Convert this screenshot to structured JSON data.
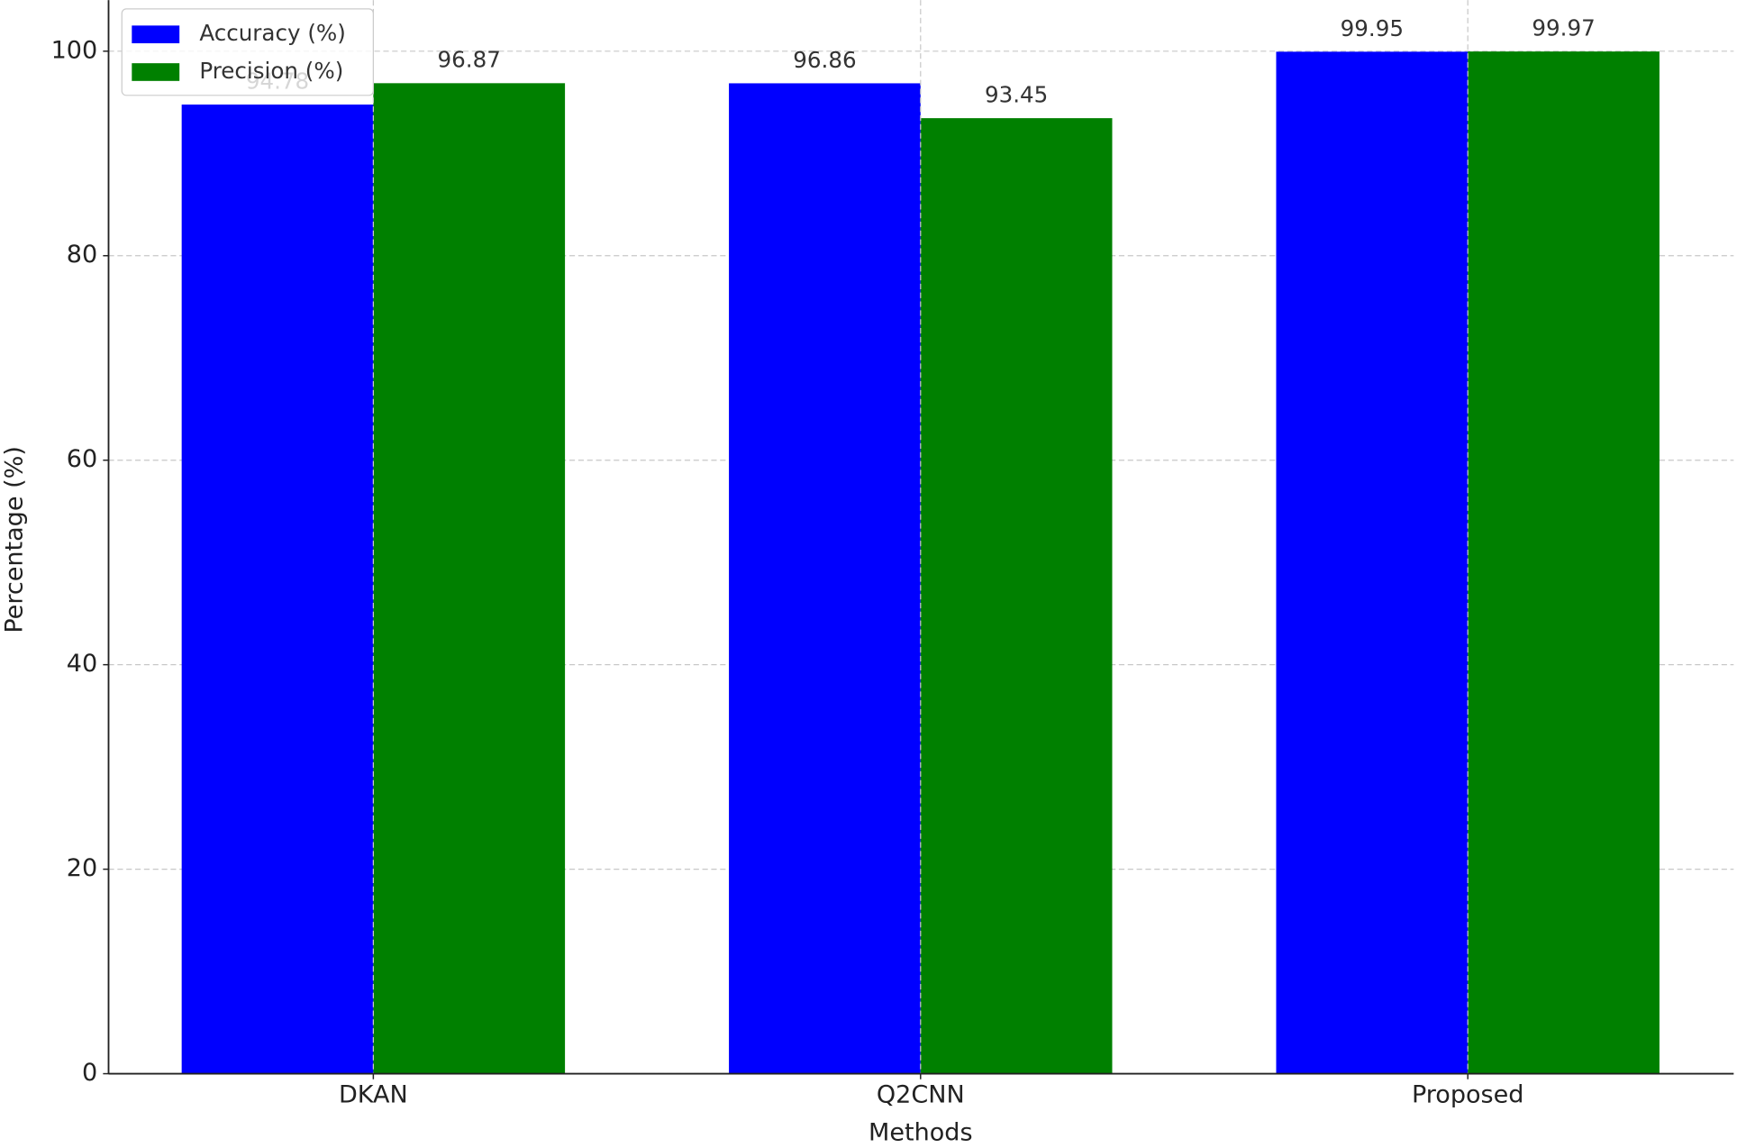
{
  "chart_data": {
    "type": "bar",
    "categories": [
      "DKAN",
      "Q2CNN",
      "Proposed"
    ],
    "series": [
      {
        "name": "Accuracy (%)",
        "color": "#0000ff",
        "values": [
          94.78,
          96.86,
          99.95
        ]
      },
      {
        "name": "Precision (%)",
        "color": "#008000",
        "values": [
          96.87,
          93.45,
          99.97
        ]
      }
    ],
    "xlabel": "Methods",
    "ylabel": "Percentage (%)",
    "ylim": [
      0,
      105
    ],
    "yticks": [
      0,
      20,
      40,
      60,
      80,
      100
    ],
    "grid": true,
    "legend": "upper left"
  }
}
